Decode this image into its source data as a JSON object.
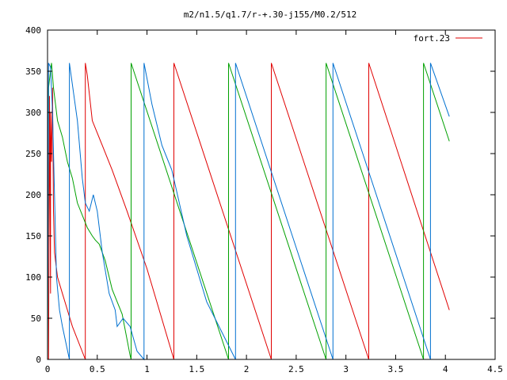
{
  "chart_data": {
    "type": "line",
    "title": "m2/n1.5/q1.7/r-+.30-j155/M0.2/512",
    "xlabel": "",
    "ylabel": "",
    "xlim": [
      0,
      4.5
    ],
    "ylim": [
      0,
      400
    ],
    "x_ticks": [
      "0",
      "0.5",
      "1",
      "1.5",
      "2",
      "2.5",
      "3",
      "3.5",
      "4",
      "4.5"
    ],
    "y_ticks": [
      "0",
      "50",
      "100",
      "150",
      "200",
      "250",
      "300",
      "350",
      "400"
    ],
    "grid": false,
    "legend_position": "top-right",
    "series_colors": [
      "#e00000",
      "#00a000",
      "#0070d0"
    ],
    "series": [
      {
        "name": "fort.23",
        "color": "#e00000",
        "points": [
          [
            0.01,
            0
          ],
          [
            0.02,
            320
          ],
          [
            0.03,
            80
          ],
          [
            0.03,
            300
          ],
          [
            0.04,
            240
          ],
          [
            0.05,
            330
          ],
          [
            0.06,
            180
          ],
          [
            0.07,
            130
          ],
          [
            0.1,
            100
          ],
          [
            0.15,
            80
          ],
          [
            0.25,
            40
          ],
          [
            0.38,
            0
          ],
          [
            0.38,
            360
          ],
          [
            0.4,
            345
          ],
          [
            0.45,
            290
          ],
          [
            0.55,
            260
          ],
          [
            0.65,
            230
          ],
          [
            0.8,
            180
          ],
          [
            1.0,
            110
          ],
          [
            1.27,
            0
          ],
          [
            1.27,
            360
          ],
          [
            2.25,
            0
          ],
          [
            2.25,
            360
          ],
          [
            3.23,
            0
          ],
          [
            3.23,
            360
          ],
          [
            4.04,
            60
          ]
        ]
      },
      {
        "color": "#00a000",
        "points": [
          [
            0.0,
            0
          ],
          [
            0.01,
            330
          ],
          [
            0.02,
            340
          ],
          [
            0.04,
            360
          ],
          [
            0.06,
            330
          ],
          [
            0.1,
            290
          ],
          [
            0.15,
            270
          ],
          [
            0.2,
            240
          ],
          [
            0.25,
            220
          ],
          [
            0.3,
            190
          ],
          [
            0.4,
            160
          ],
          [
            0.45,
            150
          ],
          [
            0.48,
            145
          ],
          [
            0.52,
            140
          ],
          [
            0.58,
            120
          ],
          [
            0.65,
            85
          ],
          [
            0.75,
            55
          ],
          [
            0.83,
            5
          ],
          [
            0.84,
            0
          ],
          [
            0.84,
            360
          ],
          [
            1.82,
            0
          ],
          [
            1.82,
            360
          ],
          [
            2.8,
            0
          ],
          [
            2.8,
            360
          ],
          [
            3.78,
            0
          ],
          [
            3.78,
            360
          ],
          [
            4.04,
            265
          ]
        ]
      },
      {
        "color": "#0070d0",
        "points": [
          [
            0.0,
            0
          ],
          [
            0.01,
            360
          ],
          [
            0.03,
            355
          ],
          [
            0.05,
            300
          ],
          [
            0.07,
            200
          ],
          [
            0.09,
            100
          ],
          [
            0.12,
            60
          ],
          [
            0.15,
            40
          ],
          [
            0.22,
            0
          ],
          [
            0.22,
            360
          ],
          [
            0.3,
            290
          ],
          [
            0.35,
            220
          ],
          [
            0.38,
            190
          ],
          [
            0.42,
            180
          ],
          [
            0.46,
            200
          ],
          [
            0.5,
            180
          ],
          [
            0.55,
            130
          ],
          [
            0.62,
            80
          ],
          [
            0.68,
            60
          ],
          [
            0.7,
            40
          ],
          [
            0.76,
            50
          ],
          [
            0.83,
            40
          ],
          [
            0.9,
            10
          ],
          [
            0.97,
            0
          ],
          [
            0.97,
            360
          ],
          [
            1.05,
            310
          ],
          [
            1.15,
            260
          ],
          [
            1.25,
            230
          ],
          [
            1.4,
            150
          ],
          [
            1.6,
            70
          ],
          [
            1.89,
            0
          ],
          [
            1.89,
            360
          ],
          [
            2.87,
            0
          ],
          [
            2.87,
            360
          ],
          [
            3.85,
            0
          ],
          [
            3.85,
            360
          ],
          [
            4.04,
            295
          ]
        ]
      }
    ]
  }
}
